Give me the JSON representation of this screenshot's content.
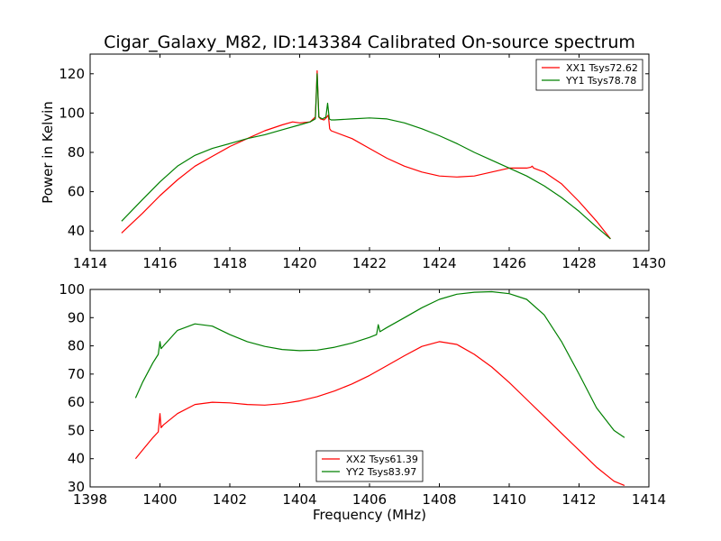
{
  "figure": {
    "title": "Cigar_Galaxy_M82, ID:143384 Calibrated On-source spectrum"
  },
  "chart_data": [
    {
      "type": "line",
      "title": "Cigar_Galaxy_M82, ID:143384 Calibrated On-source spectrum",
      "xlabel": "",
      "ylabel": "Power in Kelvin",
      "xlim": [
        1414,
        1430
      ],
      "ylim": [
        30,
        130
      ],
      "xticks": [
        1414,
        1416,
        1418,
        1420,
        1422,
        1424,
        1426,
        1428,
        1430
      ],
      "yticks": [
        40,
        60,
        80,
        100,
        120
      ],
      "grid": false,
      "legend_position": "top-right",
      "series": [
        {
          "name": "XX1 Tsys72.62",
          "color": "#ff0000",
          "x": [
            1414.9,
            1415.5,
            1416.0,
            1416.5,
            1417.0,
            1417.5,
            1418.0,
            1418.5,
            1419.0,
            1419.5,
            1419.8,
            1420.0,
            1420.3,
            1420.45,
            1420.5,
            1420.55,
            1420.6,
            1420.7,
            1420.78,
            1420.82,
            1420.86,
            1420.9,
            1421.5,
            1422.0,
            1422.5,
            1423.0,
            1423.5,
            1424.0,
            1424.5,
            1425.0,
            1425.5,
            1426.0,
            1426.5,
            1426.62,
            1426.66,
            1426.7,
            1427.0,
            1427.5,
            1428.0,
            1428.5,
            1428.9
          ],
          "y": [
            39,
            49,
            58,
            66,
            73,
            78,
            83,
            87,
            91,
            94,
            95.5,
            95,
            95.5,
            98,
            121.5,
            98,
            97,
            96.5,
            98,
            99,
            92,
            91,
            87,
            82,
            77,
            73,
            70,
            68,
            67.5,
            68,
            70,
            72,
            72,
            72.5,
            73,
            72,
            70,
            64,
            55,
            45,
            36
          ]
        },
        {
          "name": "YY1 Tsys78.78",
          "color": "#008000",
          "x": [
            1414.9,
            1415.5,
            1416.0,
            1416.5,
            1417.0,
            1417.5,
            1418.0,
            1418.5,
            1419.0,
            1419.5,
            1420.0,
            1420.3,
            1420.45,
            1420.5,
            1420.55,
            1420.65,
            1420.75,
            1420.8,
            1420.85,
            1420.9,
            1421.0,
            1421.5,
            1422.0,
            1422.5,
            1423.0,
            1423.5,
            1424.0,
            1424.5,
            1425.0,
            1425.5,
            1426.0,
            1426.5,
            1427.0,
            1427.5,
            1428.0,
            1428.5,
            1428.9
          ],
          "y": [
            45,
            56,
            65,
            73,
            78.5,
            82,
            84.5,
            87,
            89,
            91.5,
            94,
            95.5,
            97,
            120,
            98,
            97,
            98,
            105,
            97,
            96.5,
            96.5,
            97,
            97.5,
            97,
            95,
            92,
            88.5,
            84.5,
            80,
            76,
            72,
            68,
            63,
            57,
            50,
            42,
            36
          ]
        }
      ]
    },
    {
      "type": "line",
      "title": "",
      "xlabel": "Frequency (MHz)",
      "ylabel": "",
      "xlim": [
        1398,
        1414
      ],
      "ylim": [
        30,
        100
      ],
      "xticks": [
        1398,
        1400,
        1402,
        1404,
        1406,
        1408,
        1410,
        1412,
        1414
      ],
      "yticks": [
        30,
        40,
        50,
        60,
        70,
        80,
        90,
        100
      ],
      "grid": false,
      "legend_position": "bottom-center",
      "series": [
        {
          "name": "XX2 Tsys61.39",
          "color": "#ff0000",
          "x": [
            1399.3,
            1399.5,
            1399.8,
            1399.95,
            1400.0,
            1400.03,
            1400.1,
            1400.5,
            1401.0,
            1401.5,
            1402.0,
            1402.5,
            1403.0,
            1403.5,
            1404.0,
            1404.5,
            1405.0,
            1405.5,
            1406.0,
            1406.5,
            1407.0,
            1407.5,
            1408.0,
            1408.5,
            1409.0,
            1409.5,
            1410.0,
            1410.5,
            1411.0,
            1411.5,
            1412.0,
            1412.5,
            1413.0,
            1413.3
          ],
          "y": [
            40,
            43,
            47.5,
            49.5,
            56,
            51,
            52,
            56,
            59.2,
            60,
            59.8,
            59.2,
            59,
            59.5,
            60.5,
            62,
            64,
            66.5,
            69.5,
            73,
            76.5,
            79.8,
            81.5,
            80.5,
            77,
            72.5,
            67,
            61,
            55,
            49,
            43,
            37,
            32,
            30.5
          ]
        },
        {
          "name": "YY2 Tsys83.97",
          "color": "#008000",
          "x": [
            1399.3,
            1399.5,
            1399.8,
            1399.95,
            1400.0,
            1400.03,
            1400.1,
            1400.5,
            1401.0,
            1401.5,
            1402.0,
            1402.5,
            1403.0,
            1403.5,
            1404.0,
            1404.5,
            1405.0,
            1405.5,
            1406.0,
            1406.2,
            1406.25,
            1406.3,
            1406.5,
            1407.0,
            1407.5,
            1408.0,
            1408.5,
            1409.0,
            1409.5,
            1410.0,
            1410.5,
            1411.0,
            1411.5,
            1412.0,
            1412.5,
            1413.0,
            1413.3
          ],
          "y": [
            61.5,
            67,
            74,
            77,
            81.5,
            79,
            80,
            85.5,
            87.8,
            87,
            84,
            81.5,
            79.8,
            78.7,
            78.3,
            78.5,
            79.5,
            81,
            83,
            84,
            87.5,
            85,
            86.5,
            90,
            93.5,
            96.5,
            98.3,
            99,
            99.2,
            98.5,
            96.5,
            91,
            81.5,
            70,
            58,
            50,
            47.5
          ]
        }
      ]
    }
  ]
}
